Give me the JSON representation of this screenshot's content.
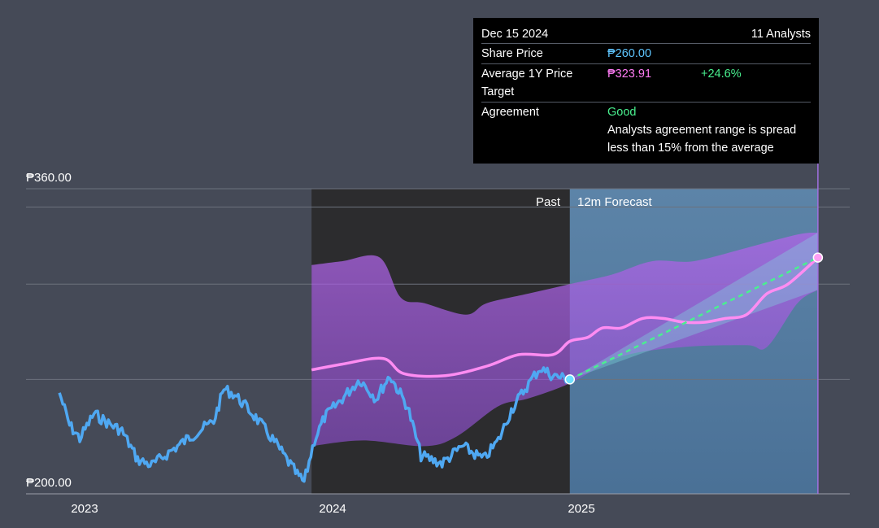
{
  "tooltip": {
    "date": "Dec 15 2024",
    "analysts": "11 Analysts",
    "share_price_label": "Share Price",
    "share_price_value": "₱260.00",
    "target_label": "Average 1Y Price Target",
    "target_value": "₱323.91",
    "target_change": "+24.6%",
    "agreement_label": "Agreement",
    "agreement_value": "Good",
    "agreement_desc": "Analysts agreement range is spread less than 15% from the average"
  },
  "colors": {
    "background": "#454a57",
    "past_zone": "#2c2c2e",
    "forecast_zone": "#5b9cd0",
    "price_line": "#4fa8f2",
    "target_line": "#ff8cf2",
    "target_band": "#a060e0",
    "forecast_dashed": "#49f08f"
  },
  "chart_data": {
    "type": "line",
    "y_axis": {
      "min": 200,
      "max": 360,
      "ticks": [
        200,
        360
      ],
      "tick_labels": [
        "₱200.00",
        "₱360.00"
      ]
    },
    "x_axis": {
      "ticks": [
        "2023",
        "2024",
        "2025"
      ]
    },
    "zones": {
      "past_label": "Past",
      "forecast_label": "12m Forecast"
    },
    "series": [
      {
        "name": "Share Price",
        "points": [
          [
            "2022-11-25",
            253
          ],
          [
            "2022-12-10",
            236
          ],
          [
            "2022-12-25",
            229
          ],
          [
            "2023-01-15",
            242
          ],
          [
            "2023-02-05",
            237
          ],
          [
            "2023-02-25",
            233
          ],
          [
            "2023-03-20",
            218
          ],
          [
            "2023-04-10",
            215
          ],
          [
            "2023-05-10",
            223
          ],
          [
            "2023-06-10",
            231
          ],
          [
            "2023-07-10",
            238
          ],
          [
            "2023-07-25",
            255
          ],
          [
            "2023-08-10",
            252
          ],
          [
            "2023-09-10",
            240
          ],
          [
            "2023-10-10",
            226
          ],
          [
            "2023-11-10",
            210
          ],
          [
            "2023-11-20",
            206
          ],
          [
            "2023-12-05",
            228
          ],
          [
            "2023-12-20",
            240
          ],
          [
            "2024-01-10",
            248
          ],
          [
            "2024-02-10",
            260
          ],
          [
            "2024-03-05",
            250
          ],
          [
            "2024-03-25",
            262
          ],
          [
            "2024-04-20",
            246
          ],
          [
            "2024-05-10",
            220
          ],
          [
            "2024-06-10",
            216
          ],
          [
            "2024-07-10",
            225
          ],
          [
            "2024-08-10",
            218
          ],
          [
            "2024-09-01",
            228
          ],
          [
            "2024-09-20",
            244
          ],
          [
            "2024-10-10",
            255
          ],
          [
            "2024-11-01",
            266
          ],
          [
            "2024-11-20",
            262
          ],
          [
            "2024-12-15",
            260
          ]
        ]
      },
      {
        "name": "Average 1Y Price Target",
        "points": [
          [
            "2023-12-01",
            265
          ],
          [
            "2024-01-15",
            268
          ],
          [
            "2024-03-15",
            271
          ],
          [
            "2024-04-15",
            263
          ],
          [
            "2024-06-15",
            262
          ],
          [
            "2024-08-15",
            267
          ],
          [
            "2024-10-01",
            273
          ],
          [
            "2024-11-20",
            273
          ],
          [
            "2024-12-15",
            280
          ],
          [
            "2025-01-10",
            282
          ],
          [
            "2025-02-01",
            287
          ],
          [
            "2025-03-01",
            287
          ],
          [
            "2025-04-01",
            292
          ],
          [
            "2025-05-01",
            292
          ],
          [
            "2025-06-01",
            290
          ],
          [
            "2025-07-01",
            290
          ],
          [
            "2025-08-01",
            292
          ],
          [
            "2025-09-01",
            294
          ],
          [
            "2025-10-01",
            305
          ],
          [
            "2025-11-01",
            310
          ],
          [
            "2025-12-15",
            323.91
          ]
        ]
      },
      {
        "name": "Target Range High",
        "points": [
          [
            "2023-12-01",
            320
          ],
          [
            "2024-01-15",
            322
          ],
          [
            "2024-03-10",
            324
          ],
          [
            "2024-04-10",
            303
          ],
          [
            "2024-05-15",
            300
          ],
          [
            "2024-07-15",
            294
          ],
          [
            "2024-08-15",
            300
          ],
          [
            "2024-10-15",
            305
          ],
          [
            "2024-12-15",
            310
          ],
          [
            "2025-02-15",
            315
          ],
          [
            "2025-04-15",
            322
          ],
          [
            "2025-06-15",
            322
          ],
          [
            "2025-09-01",
            329
          ],
          [
            "2025-11-15",
            336
          ],
          [
            "2025-12-15",
            337
          ]
        ]
      },
      {
        "name": "Target Range Low",
        "points": [
          [
            "2023-12-01",
            225
          ],
          [
            "2024-02-15",
            228
          ],
          [
            "2024-05-15",
            225
          ],
          [
            "2024-07-01",
            230
          ],
          [
            "2024-09-01",
            246
          ],
          [
            "2024-10-15",
            250
          ],
          [
            "2024-12-15",
            258
          ],
          [
            "2025-03-01",
            272
          ],
          [
            "2025-06-01",
            277
          ],
          [
            "2025-09-01",
            278
          ],
          [
            "2025-10-01",
            277
          ],
          [
            "2025-11-15",
            300
          ],
          [
            "2025-12-15",
            307
          ]
        ]
      },
      {
        "name": "Forecast",
        "points": [
          [
            "2024-12-15",
            260
          ],
          [
            "2025-12-15",
            323.91
          ]
        ]
      }
    ]
  }
}
